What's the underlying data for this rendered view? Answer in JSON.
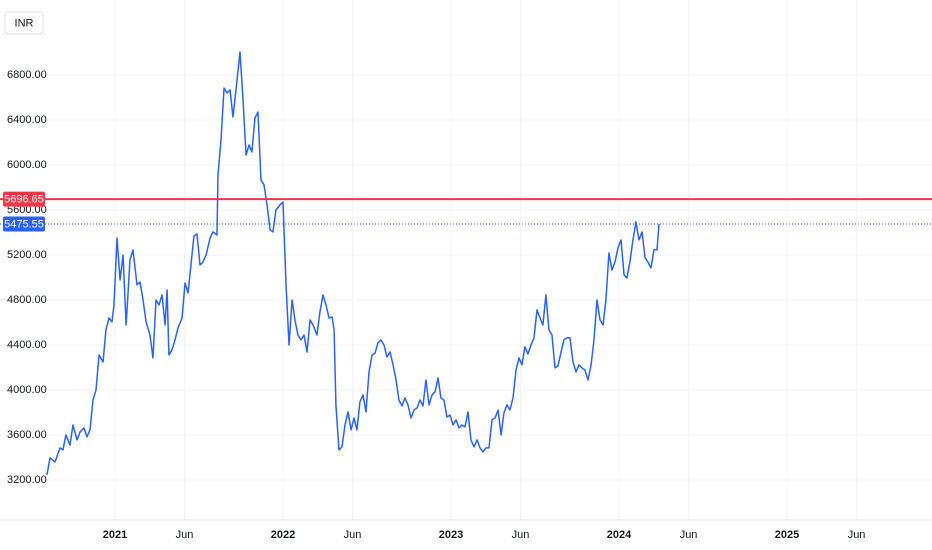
{
  "chart_data": {
    "type": "line",
    "currency": "INR",
    "color": "#2962ff",
    "alert_line": {
      "value": 5696.65,
      "color": "#f23645"
    },
    "xlim": [
      2020.3155,
      2025.863
    ],
    "ylim": [
      2844,
      7467
    ],
    "xticks": [
      {
        "value": 2021,
        "label": "2021"
      },
      {
        "value": 2021.414,
        "label": "Jun"
      },
      {
        "value": 2022,
        "label": "2022"
      },
      {
        "value": 2022.414,
        "label": "Jun"
      },
      {
        "value": 2023,
        "label": "2023"
      },
      {
        "value": 2023.414,
        "label": "Jun"
      },
      {
        "value": 2024,
        "label": "2024"
      },
      {
        "value": 2024.414,
        "label": "Jun"
      },
      {
        "value": 2025,
        "label": "2025"
      },
      {
        "value": 2025.414,
        "label": "Jun"
      }
    ],
    "yticks": [
      {
        "value": 3200,
        "label": "3200.00"
      },
      {
        "value": 3600,
        "label": "3600.00"
      },
      {
        "value": 4000,
        "label": "4000.00"
      },
      {
        "value": 4400,
        "label": "4400.00"
      },
      {
        "value": 4800,
        "label": "4800.00"
      },
      {
        "value": 5200,
        "label": "5200.00"
      },
      {
        "value": 5600,
        "label": "5600.00"
      },
      {
        "value": 6000,
        "label": "6000.00"
      },
      {
        "value": 6400,
        "label": "6400.00"
      },
      {
        "value": 6800,
        "label": "6800.00"
      }
    ],
    "grid": true,
    "x": [
      2020.595,
      2020.613,
      2020.643,
      2020.673,
      2020.69,
      2020.708,
      2020.732,
      2020.75,
      2020.774,
      2020.792,
      2020.815,
      2020.833,
      2020.851,
      2020.869,
      2020.887,
      2020.905,
      2020.929,
      2020.946,
      2020.964,
      2020.982,
      2020.994,
      2021.012,
      2021.03,
      2021.048,
      2021.066,
      2021.077,
      2021.089,
      2021.107,
      2021.131,
      2021.149,
      2021.167,
      2021.185,
      2021.208,
      2021.226,
      2021.244,
      2021.262,
      2021.28,
      2021.298,
      2021.31,
      2021.321,
      2021.339,
      2021.357,
      2021.375,
      2021.399,
      2021.417,
      2021.435,
      2021.452,
      2021.47,
      2021.488,
      2021.506,
      2021.524,
      2021.542,
      2021.566,
      2021.583,
      2021.607,
      2021.613,
      2021.631,
      2021.649,
      2021.667,
      2021.685,
      2021.702,
      2021.72,
      2021.744,
      2021.762,
      2021.78,
      2021.798,
      2021.815,
      2021.833,
      2021.851,
      2021.869,
      2021.887,
      2021.905,
      2021.923,
      2021.94,
      2021.958,
      2021.982,
      2022.0,
      2022.018,
      2022.036,
      2022.054,
      2022.071,
      2022.089,
      2022.107,
      2022.125,
      2022.143,
      2022.161,
      2022.179,
      2022.202,
      2022.22,
      2022.238,
      2022.256,
      2022.274,
      2022.292,
      2022.304,
      2022.315,
      2022.333,
      2022.351,
      2022.369,
      2022.387,
      2022.405,
      2022.423,
      2022.44,
      2022.458,
      2022.476,
      2022.494,
      2022.512,
      2022.53,
      2022.548,
      2022.565,
      2022.583,
      2022.601,
      2022.619,
      2022.637,
      2022.655,
      2022.673,
      2022.69,
      2022.708,
      2022.726,
      2022.744,
      2022.762,
      2022.78,
      2022.798,
      2022.815,
      2022.833,
      2022.851,
      2022.869,
      2022.887,
      2022.905,
      2022.923,
      2022.94,
      2022.958,
      2022.976,
      2022.994,
      2023.012,
      2023.03,
      2023.048,
      2023.065,
      2023.083,
      2023.101,
      2023.119,
      2023.137,
      2023.155,
      2023.173,
      2023.19,
      2023.208,
      2023.226,
      2023.244,
      2023.262,
      2023.28,
      2023.298,
      2023.315,
      2023.333,
      2023.351,
      2023.369,
      2023.387,
      2023.405,
      2023.422,
      2023.44,
      2023.458,
      2023.476,
      2023.494,
      2023.512,
      2023.53,
      2023.547,
      2023.565,
      2023.583,
      2023.601,
      2023.619,
      2023.637,
      2023.655,
      2023.672,
      2023.69,
      2023.708,
      2023.726,
      2023.744,
      2023.762,
      2023.78,
      2023.797,
      2023.815,
      2023.833,
      2023.851,
      2023.869,
      2023.887,
      2023.905,
      2023.922,
      2023.94,
      2023.958,
      2023.976,
      2023.994,
      2024.012,
      2024.03,
      2024.047,
      2024.065,
      2024.083,
      2024.101,
      2024.119,
      2024.137,
      2024.155,
      2024.172,
      2024.19,
      2024.208,
      2024.226,
      2024.238
    ],
    "values": [
      3245,
      3396,
      3360,
      3485,
      3467,
      3600,
      3511,
      3689,
      3556,
      3627,
      3663,
      3583,
      3645,
      3911,
      4000,
      4311,
      4249,
      4534,
      4640,
      4605,
      4756,
      5351,
      4978,
      5200,
      4578,
      4845,
      5156,
      5245,
      4934,
      4960,
      4800,
      4605,
      4489,
      4285,
      4800,
      4756,
      4845,
      4578,
      4889,
      4311,
      4356,
      4445,
      4551,
      4640,
      4951,
      4863,
      5111,
      5369,
      5387,
      5111,
      5138,
      5200,
      5351,
      5405,
      5378,
      5911,
      6223,
      6685,
      6640,
      6667,
      6427,
      6667,
      7005,
      6578,
      6089,
      6178,
      6116,
      6418,
      6471,
      5867,
      5823,
      5645,
      5423,
      5405,
      5600,
      5645,
      5671,
      4934,
      4400,
      4800,
      4623,
      4489,
      4445,
      4489,
      4338,
      4623,
      4578,
      4489,
      4694,
      4845,
      4756,
      4640,
      4649,
      4534,
      3867,
      3467,
      3494,
      3689,
      3805,
      3645,
      3751,
      3645,
      3894,
      3956,
      3805,
      4160,
      4311,
      4329,
      4418,
      4445,
      4400,
      4294,
      4338,
      4223,
      4089,
      3911,
      3858,
      3929,
      3867,
      3751,
      3823,
      3840,
      3911,
      3858,
      4089,
      3867,
      3956,
      3983,
      4107,
      3929,
      3911,
      3760,
      3778,
      3689,
      3734,
      3663,
      3689,
      3671,
      3805,
      3556,
      3494,
      3556,
      3485,
      3449,
      3485,
      3485,
      3734,
      3751,
      3822,
      3600,
      3796,
      3867,
      3822,
      3929,
      4178,
      4285,
      4223,
      4383,
      4320,
      4400,
      4463,
      4711,
      4640,
      4578,
      4845,
      4534,
      4489,
      4196,
      4214,
      4338,
      4445,
      4463,
      4463,
      4249,
      4160,
      4223,
      4196,
      4178,
      4089,
      4214,
      4445,
      4800,
      4623,
      4578,
      4800,
      5218,
      5067,
      5138,
      5263,
      5334,
      5023,
      4996,
      5138,
      5334,
      5494,
      5334,
      5405,
      5174,
      5138,
      5085,
      5245,
      5245,
      5475.55
    ]
  }
}
